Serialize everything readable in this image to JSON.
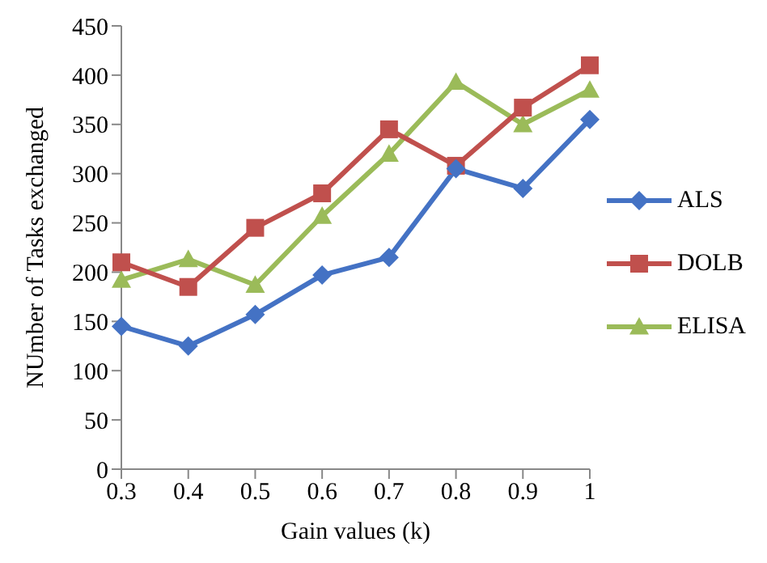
{
  "chart_data": {
    "type": "line",
    "xlabel": "Gain values (k)",
    "ylabel": "NUmber of Tasks exchanged",
    "categories": [
      "0.3",
      "0.4",
      "0.5",
      "0.6",
      "0.7",
      "0.8",
      "0.9",
      "1"
    ],
    "series": [
      {
        "name": "ALS",
        "color": "#4472c4",
        "marker": "diamond",
        "values": [
          145,
          125,
          157,
          197,
          215,
          305,
          285,
          355
        ]
      },
      {
        "name": "DOLB",
        "color": "#c0504d",
        "marker": "square",
        "values": [
          210,
          185,
          245,
          280,
          345,
          308,
          367,
          410
        ]
      },
      {
        "name": "ELISA",
        "color": "#9bbb59",
        "marker": "triangle",
        "values": [
          192,
          213,
          187,
          257,
          320,
          393,
          350,
          385
        ]
      }
    ],
    "ylim": [
      0,
      450
    ],
    "yticks": [
      0,
      50,
      100,
      150,
      200,
      250,
      300,
      350,
      400,
      450
    ],
    "grid": false,
    "legend": "right",
    "line_style": "solid"
  }
}
